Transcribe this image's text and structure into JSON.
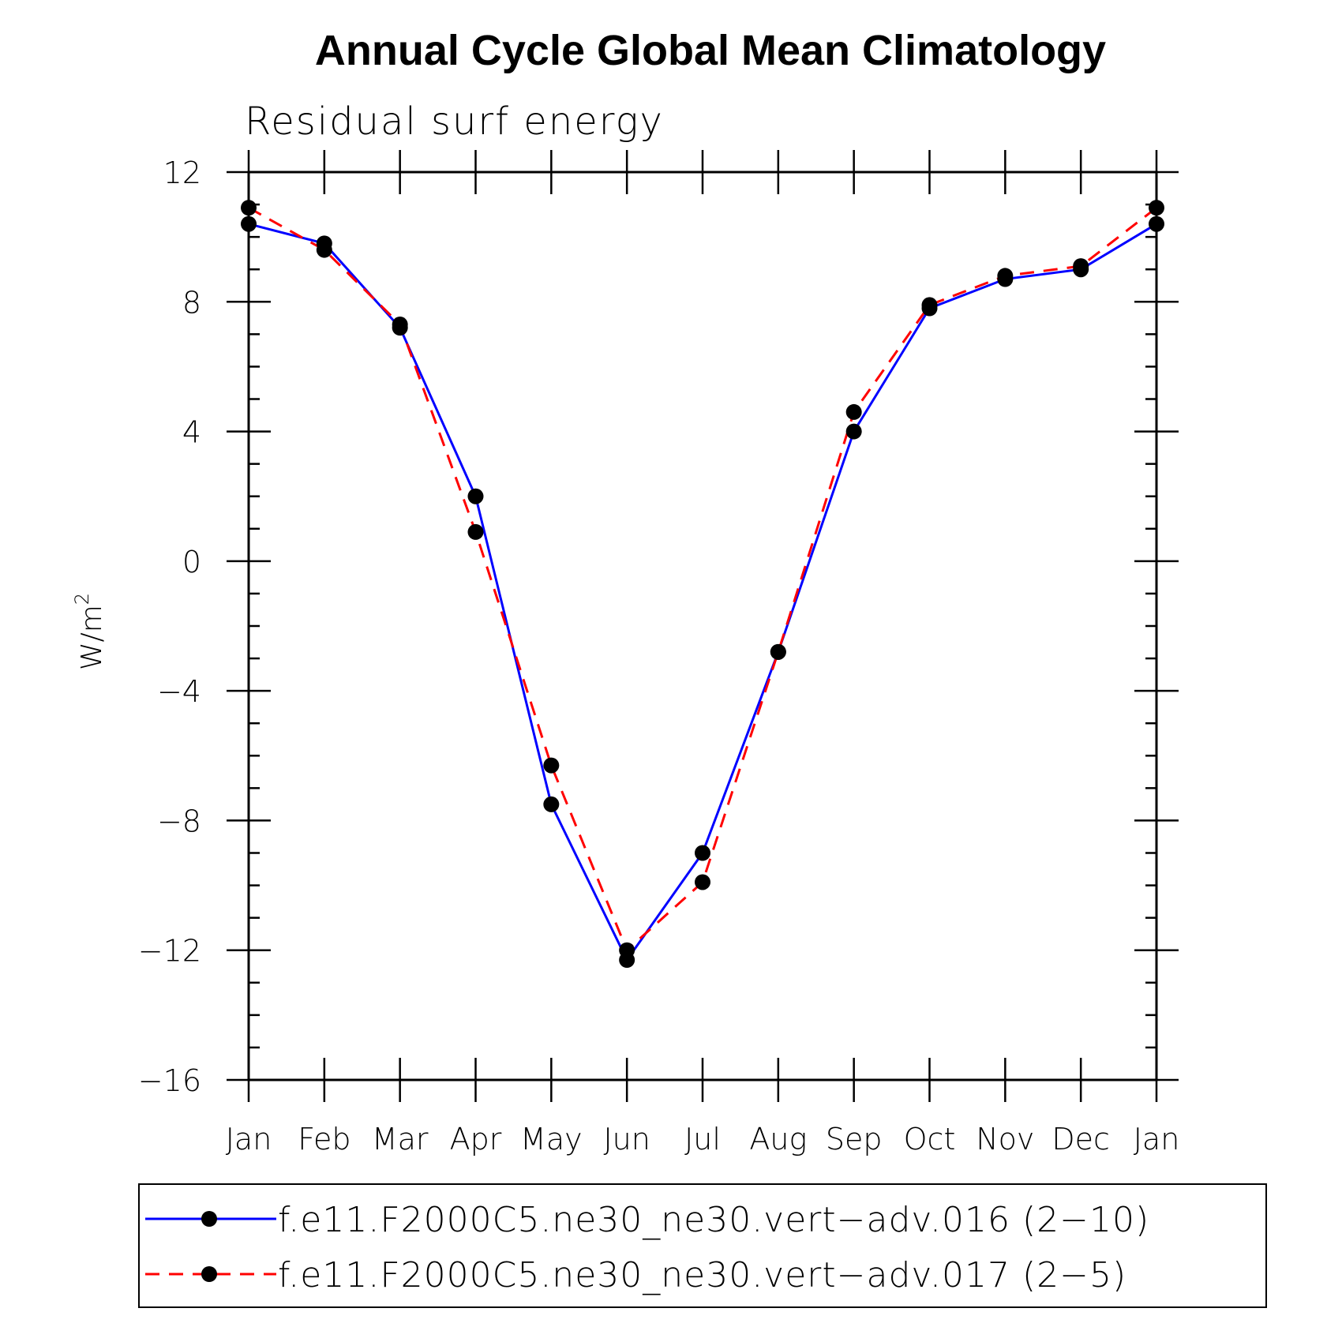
{
  "chart_data": {
    "type": "line",
    "title": "Annual Cycle Global Mean Climatology",
    "subtitle": "Residual surf energy",
    "ylabel": "W/m",
    "ylabel_sup": "2",
    "ylim": [
      -16,
      12
    ],
    "yticks": [
      12,
      8,
      4,
      0,
      -4,
      -8,
      -12,
      -16
    ],
    "ytick_labels": [
      "12",
      "8",
      "4",
      "0",
      "−4",
      "−8",
      "−12",
      "−16"
    ],
    "categories": [
      "Jan",
      "Feb",
      "Mar",
      "Apr",
      "May",
      "Jun",
      "Jul",
      "Aug",
      "Sep",
      "Oct",
      "Nov",
      "Dec",
      "Jan"
    ],
    "series": [
      {
        "name": "f.e11.F2000C5.ne30_ne30.vert−adv.016 (2−10)",
        "color": "#0000ff",
        "dash": "solid",
        "values": [
          10.4,
          9.8,
          7.2,
          2.0,
          -7.5,
          -12.3,
          -9.0,
          -2.8,
          4.0,
          7.8,
          8.7,
          9.0,
          10.4
        ]
      },
      {
        "name": "f.e11.F2000C5.ne30_ne30.vert−adv.017 (2−5)",
        "color": "#ff0000",
        "dash": "dashed",
        "values": [
          10.9,
          9.6,
          7.3,
          0.9,
          -6.3,
          -12.0,
          -9.9,
          -2.8,
          4.6,
          7.9,
          8.8,
          9.1,
          10.9
        ]
      }
    ],
    "legend_position": "bottom",
    "grid": false
  }
}
